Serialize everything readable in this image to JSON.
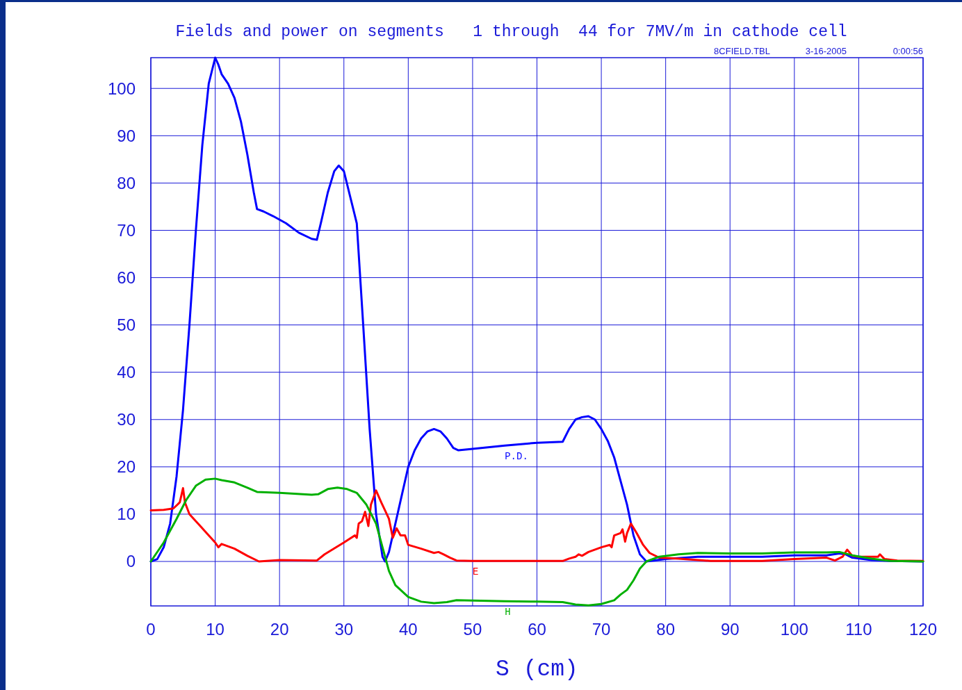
{
  "chart_data": {
    "type": "line",
    "title": "Fields and power on segments   1 through  44 for 7MV/m in cathode cell",
    "xlabel": "S (cm)",
    "annotations": [
      "8CFIELD.TBL",
      "3-16-2005",
      "0:00:56"
    ],
    "xlim": [
      0,
      120
    ],
    "xticks": [
      0,
      10,
      20,
      30,
      40,
      50,
      60,
      70,
      80,
      90,
      100,
      110,
      120
    ],
    "ylim": [
      -9.4,
      106.5
    ],
    "yticks": [
      0,
      10,
      20,
      30,
      40,
      50,
      60,
      70,
      80,
      90,
      100
    ],
    "grid": true,
    "legend": false,
    "marker": "none",
    "line_style": "solid",
    "series": [
      {
        "name": "P.D.",
        "color": "#0000ff",
        "x": [
          0,
          1,
          2,
          3,
          4,
          5,
          6,
          7,
          8,
          9,
          10,
          10.5,
          11,
          12,
          13,
          14,
          15,
          16,
          16.5,
          17.5,
          19,
          21,
          23,
          25,
          25.8,
          26.5,
          27.5,
          28.5,
          29.2,
          30,
          31,
          32,
          33,
          34,
          35,
          36,
          36.4,
          37,
          38,
          39,
          40,
          41,
          42,
          43,
          44,
          45,
          46,
          47,
          47.8,
          50,
          55,
          60,
          64,
          65,
          66,
          67,
          68,
          69,
          70,
          71,
          72,
          73,
          74,
          75,
          76,
          77,
          80,
          85,
          90,
          95,
          100,
          105,
          107,
          108,
          109,
          112,
          115,
          120
        ],
        "values": [
          0,
          0.5,
          3,
          8,
          18,
          32,
          50,
          70,
          88,
          101,
          106.5,
          105,
          103,
          101,
          98,
          93,
          86,
          78,
          74.5,
          74,
          73,
          71.5,
          69.5,
          68.2,
          68,
          72,
          78,
          82.5,
          83.7,
          82.5,
          77,
          71.5,
          50,
          28,
          10,
          1,
          0,
          2,
          8,
          14,
          20,
          23.5,
          26,
          27.5,
          28,
          27.5,
          26,
          24,
          23.5,
          23.8,
          24.5,
          25.1,
          25.3,
          28,
          30,
          30.5,
          30.7,
          30,
          28,
          25.5,
          22,
          17,
          12,
          5.5,
          1.5,
          0,
          0.5,
          1,
          1,
          1,
          1.3,
          1.3,
          1.7,
          1.5,
          0.8,
          0.3,
          0.1,
          0
        ]
      },
      {
        "name": "E",
        "color": "#ff0000",
        "x": [
          0,
          2,
          3.5,
          4.5,
          5,
          5.3,
          6,
          8,
          10,
          10.5,
          11,
          13,
          15,
          16.8,
          20,
          25.8,
          27,
          30,
          31.7,
          32,
          32.3,
          32.8,
          33.3,
          33.8,
          34.2,
          35,
          35.8,
          36.5,
          37,
          37.6,
          38.2,
          38.8,
          39.5,
          40,
          42,
          44,
          44.7,
          45.5,
          46.5,
          47.5,
          50,
          64,
          65,
          66,
          66.5,
          67,
          68,
          70,
          71.3,
          71.6,
          72,
          73,
          73.3,
          73.7,
          74,
          74.6,
          75.5,
          76.5,
          77.5,
          79,
          82,
          87,
          95,
          100,
          105,
          106.3,
          107.5,
          108.2,
          109,
          110,
          113,
          113.3,
          114,
          116,
          120
        ],
        "values": [
          10.8,
          10.9,
          11.2,
          12.5,
          15.5,
          12.5,
          10,
          7,
          4,
          3,
          3.7,
          2.7,
          1.2,
          0,
          0.3,
          0.2,
          1.5,
          4,
          5.5,
          5,
          8,
          8.5,
          10.5,
          7.5,
          12,
          15,
          12.5,
          10.5,
          9,
          5,
          7,
          5.5,
          5.5,
          3.5,
          2.7,
          1.8,
          2,
          1.5,
          0.8,
          0.2,
          0.1,
          0.1,
          0.6,
          1,
          1.5,
          1.2,
          2,
          3,
          3.5,
          3,
          5.5,
          6,
          6.8,
          4.2,
          6,
          8,
          6,
          3.5,
          1.8,
          0.8,
          0.6,
          0.1,
          0.1,
          0.5,
          0.8,
          0.2,
          1,
          2.5,
          1.2,
          1,
          1,
          1.5,
          0.5,
          0.2,
          0.1
        ]
      },
      {
        "name": "H",
        "color": "#00b000",
        "x": [
          0,
          2,
          4,
          5.5,
          7,
          8.5,
          10,
          11,
          13,
          15,
          16.5,
          20,
          25,
          26,
          27.5,
          29,
          30.5,
          32,
          33.5,
          35,
          36,
          37,
          38,
          40,
          42,
          44,
          46,
          47.5,
          55,
          60,
          64,
          66,
          68,
          70,
          72,
          73,
          74,
          75,
          76,
          77,
          79,
          82,
          85,
          90,
          95,
          100,
          105,
          107,
          109,
          112,
          115,
          120
        ],
        "values": [
          0,
          4,
          9,
          13,
          16,
          17.3,
          17.5,
          17.2,
          16.7,
          15.6,
          14.7,
          14.5,
          14.1,
          14.2,
          15.3,
          15.6,
          15.3,
          14.5,
          12,
          8,
          3,
          -2,
          -5,
          -7.5,
          -8.5,
          -8.8,
          -8.6,
          -8.2,
          -8.4,
          -8.5,
          -8.6,
          -9.1,
          -9.3,
          -9,
          -8.2,
          -7,
          -6,
          -4,
          -1.5,
          0,
          1,
          1.5,
          1.8,
          1.7,
          1.7,
          1.9,
          1.9,
          2,
          1.3,
          0.6,
          0.1,
          0
        ]
      }
    ]
  }
}
